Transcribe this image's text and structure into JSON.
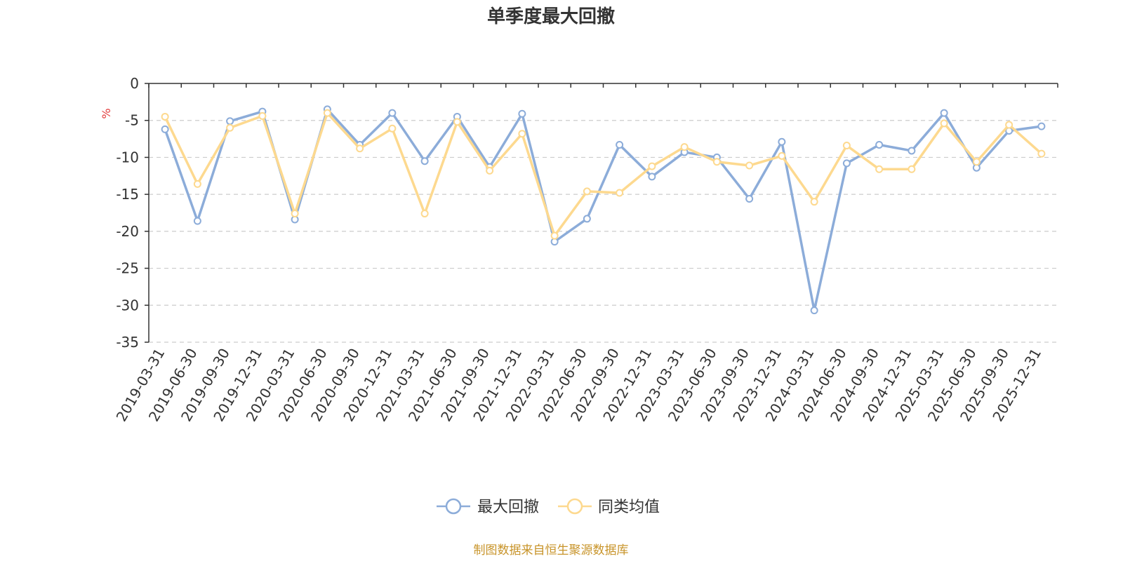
{
  "chart_data": {
    "type": "line",
    "title": "单季度最大回撤",
    "ylabel": "%",
    "xlabel": "",
    "ylim": [
      -35,
      0
    ],
    "yticks": [
      0,
      -5,
      -10,
      -15,
      -20,
      -25,
      -30,
      -35
    ],
    "grid": "horizontal dashed",
    "legend_position": "bottom-center",
    "categories": [
      "2019-03-31",
      "2019-06-30",
      "2019-09-30",
      "2019-12-31",
      "2020-03-31",
      "2020-06-30",
      "2020-09-30",
      "2020-12-31",
      "2021-03-31",
      "2021-06-30",
      "2021-09-30",
      "2021-12-31",
      "2022-03-31",
      "2022-06-30",
      "2022-09-30",
      "2022-12-31",
      "2023-03-31",
      "2023-06-30",
      "2023-09-30",
      "2023-12-31",
      "2024-03-31",
      "2024-06-30",
      "2024-09-30",
      "2024-12-31",
      "2025-03-31",
      "2025-06-30",
      "2025-09-30",
      "2025-12-31"
    ],
    "series": [
      {
        "name": "最大回撤",
        "color": "#8cacd9",
        "values": [
          -6.2,
          -18.6,
          -5.1,
          -3.8,
          -18.4,
          -3.5,
          -8.3,
          -4.0,
          -10.5,
          -4.5,
          -11.3,
          -4.1,
          -21.4,
          -18.3,
          -8.3,
          -12.6,
          -9.3,
          -10.0,
          -15.6,
          -7.9,
          -30.7,
          -10.8,
          -8.3,
          -9.1,
          -4.0,
          -11.4,
          -6.4,
          -5.8
        ]
      },
      {
        "name": "同类均值",
        "color": "#fdd98f",
        "values": [
          -4.5,
          -13.6,
          -6.0,
          -4.4,
          -17.6,
          -4.0,
          -8.8,
          -6.1,
          -17.6,
          -5.2,
          -11.8,
          -6.8,
          -20.6,
          -14.6,
          -14.8,
          -11.2,
          -8.6,
          -10.6,
          -11.1,
          -9.8,
          -16.0,
          -8.4,
          -11.6,
          -11.6,
          -5.4,
          -10.6,
          -5.6,
          -9.5
        ]
      }
    ]
  },
  "footer": {
    "source": "制图数据来自恒生聚源数据库"
  }
}
